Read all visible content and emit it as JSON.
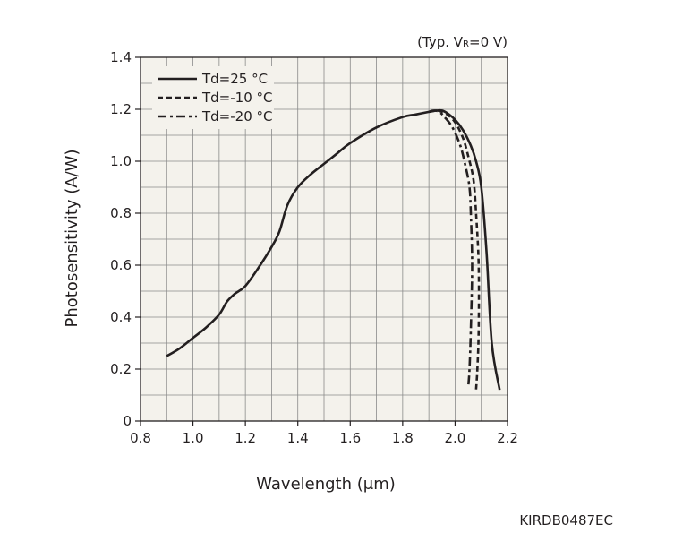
{
  "chart_data": {
    "type": "line",
    "condition_note": "(Typ. VR=0 V)",
    "condition_prefix": "(Typ. V",
    "condition_sub": "R",
    "condition_suffix": "=0 V)",
    "xlabel": "Wavelength (μm)",
    "ylabel": "Photosensitivity (A/W)",
    "xlim": [
      0.8,
      2.2
    ],
    "ylim": [
      0,
      1.4
    ],
    "x_ticks": [
      0.8,
      1.0,
      1.2,
      1.4,
      1.6,
      1.8,
      2.0,
      2.2
    ],
    "x_tick_labels": [
      "0.8",
      "1.0",
      "1.2",
      "1.4",
      "1.6",
      "1.8",
      "2.0",
      "2.2"
    ],
    "y_ticks": [
      0,
      0.2,
      0.4,
      0.6,
      0.8,
      1.0,
      1.2,
      1.4
    ],
    "y_tick_labels": [
      "0",
      "0.2",
      "0.4",
      "0.6",
      "0.8",
      "1.0",
      "1.2",
      "1.4"
    ],
    "x_minor_step": 0.1,
    "y_minor_step": 0.1,
    "grid": true,
    "legend_position": "top-left",
    "series": [
      {
        "name": "Td=25 °C",
        "dash": "solid",
        "x": [
          0.9,
          0.95,
          1.0,
          1.05,
          1.1,
          1.13,
          1.16,
          1.2,
          1.25,
          1.3,
          1.33,
          1.36,
          1.4,
          1.45,
          1.5,
          1.55,
          1.6,
          1.7,
          1.8,
          1.85,
          1.9,
          1.93,
          1.95,
          1.97,
          2.0,
          2.03,
          2.06,
          2.08,
          2.1,
          2.12,
          2.14,
          2.17
        ],
        "y": [
          0.25,
          0.28,
          0.32,
          0.36,
          0.41,
          0.46,
          0.49,
          0.52,
          0.59,
          0.67,
          0.73,
          0.83,
          0.9,
          0.95,
          0.99,
          1.03,
          1.07,
          1.13,
          1.17,
          1.18,
          1.19,
          1.195,
          1.195,
          1.185,
          1.16,
          1.12,
          1.06,
          1.0,
          0.9,
          0.65,
          0.3,
          0.12
        ]
      },
      {
        "name": "Td=-10 °C",
        "dash": "dashed",
        "x": [
          1.9,
          1.93,
          1.95,
          1.97,
          2.0,
          2.03,
          2.05,
          2.07,
          2.08,
          2.09,
          2.09,
          2.085,
          2.08
        ],
        "y": [
          1.19,
          1.195,
          1.19,
          1.18,
          1.15,
          1.09,
          1.02,
          0.93,
          0.8,
          0.6,
          0.35,
          0.2,
          0.12
        ]
      },
      {
        "name": "Td=-20 °C",
        "dash": "dashdot",
        "x": [
          1.9,
          1.92,
          1.94,
          1.96,
          1.99,
          2.02,
          2.04,
          2.055,
          2.06,
          2.065,
          2.06,
          2.055,
          2.05
        ],
        "y": [
          1.19,
          1.195,
          1.19,
          1.17,
          1.13,
          1.06,
          0.98,
          0.9,
          0.8,
          0.6,
          0.35,
          0.2,
          0.13
        ]
      }
    ]
  },
  "figure_code": "KIRDB0487EC"
}
